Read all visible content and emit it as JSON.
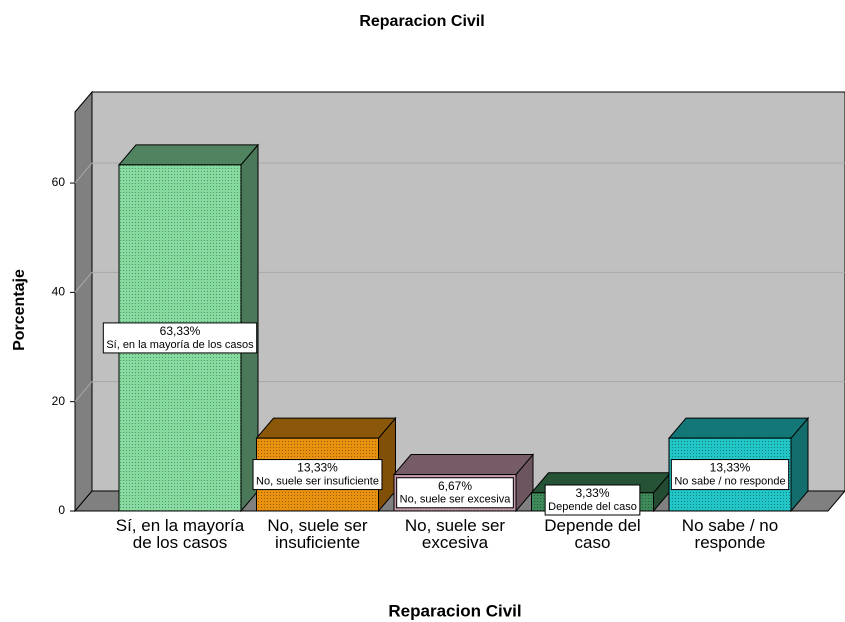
{
  "chart_data": {
    "type": "bar3d",
    "title": "Reparacion Civil",
    "x_label": "Reparacion Civil",
    "y_label": "Porcentaje",
    "categories": [
      "Sí, en la mayoría de los casos",
      "No, suele ser insuficiente",
      "No, suele ser excesiva",
      "Depende del caso",
      "No sabe / no responde"
    ],
    "values": [
      63.33,
      13.33,
      6.67,
      3.33,
      13.33
    ],
    "value_labels": [
      "63,33%",
      "13,33%",
      "6,67%",
      "3,33%",
      "13,33%"
    ],
    "colors": [
      "#86dba0",
      "#e8920f",
      "#c49aac",
      "#3f8a5a",
      "#22c6c6"
    ],
    "ylim": [
      0,
      73
    ],
    "yticks": [
      0,
      20,
      40,
      60
    ],
    "grid": true
  }
}
